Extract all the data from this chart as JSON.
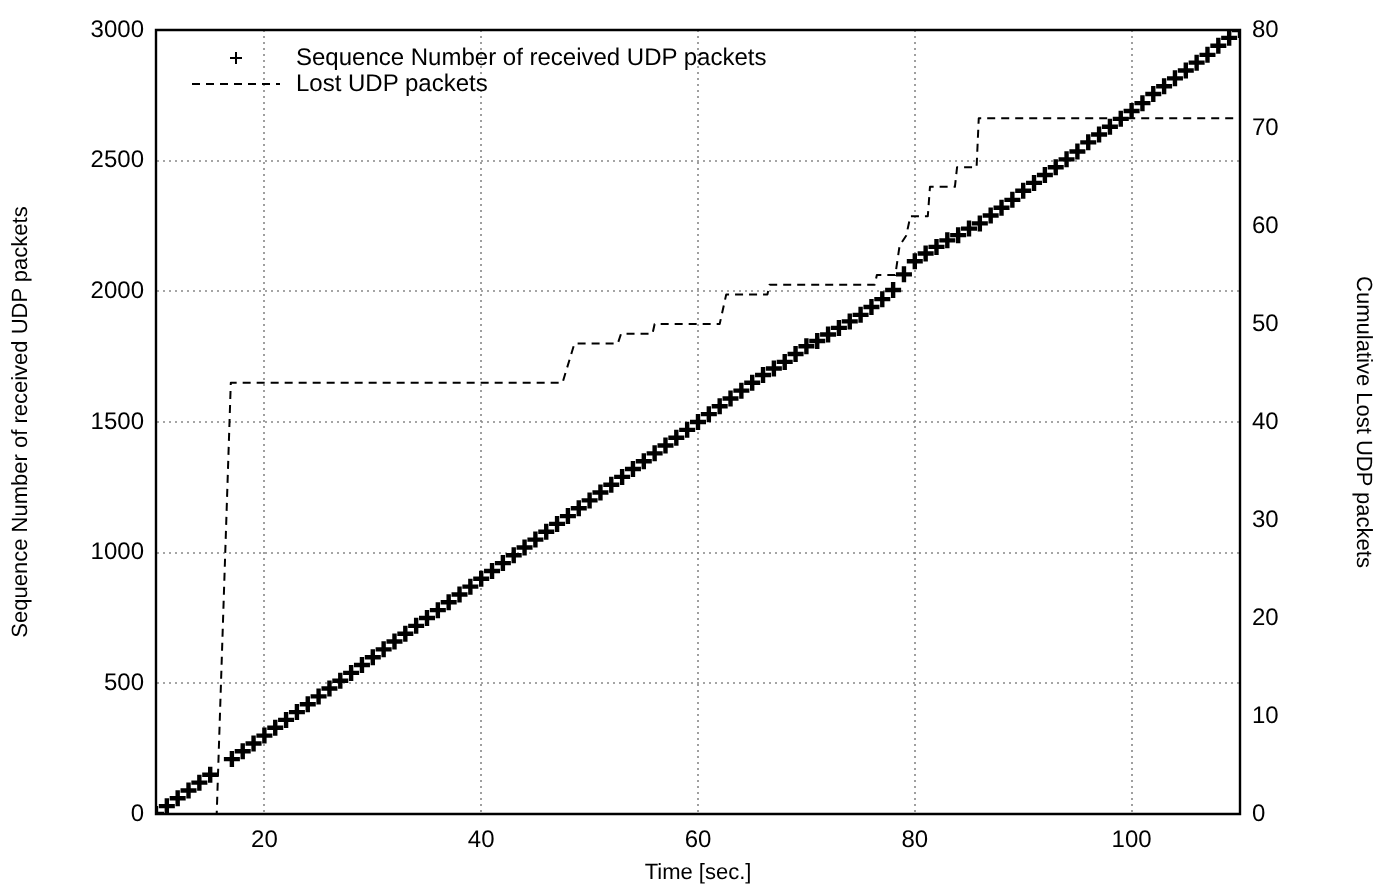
{
  "chart_data": {
    "type": "scatter",
    "xlabel": "Time [sec.]",
    "ylabel": "Sequence Number of received UDP packets",
    "y2label": "Cumulative Lost UDP packets",
    "xlim": [
      10,
      110
    ],
    "xticks": [
      20,
      40,
      60,
      80,
      100
    ],
    "ylim": [
      0,
      3000
    ],
    "yticks": [
      0,
      500,
      1000,
      1500,
      2000,
      2500,
      3000
    ],
    "y2lim": [
      0,
      80
    ],
    "y2ticks": [
      0,
      10,
      20,
      30,
      40,
      50,
      60,
      70,
      80
    ],
    "grid": true,
    "legend": "top left",
    "series": [
      {
        "name": "Sequence Number of received UDP packets",
        "type": "scatter",
        "marker": "cross",
        "color": "#000000",
        "x": [
          10,
          11,
          12,
          13,
          14,
          15,
          17,
          18,
          19,
          20,
          21,
          22,
          23,
          24,
          25,
          26,
          27,
          28,
          29,
          30,
          31,
          32,
          33,
          34,
          35,
          36,
          37,
          38,
          39,
          40,
          41,
          42,
          43,
          44,
          45,
          46,
          47,
          48,
          49,
          50,
          51,
          52,
          53,
          54,
          55,
          56,
          57,
          58,
          59,
          60,
          61,
          62,
          63,
          64,
          65,
          66,
          67,
          68,
          69,
          70,
          71,
          72,
          73,
          74,
          75,
          76,
          77,
          78,
          79,
          80,
          81,
          82,
          83,
          84,
          85,
          86,
          87,
          88,
          89,
          90,
          91,
          92,
          93,
          94,
          95,
          96,
          97,
          98,
          99,
          100,
          101,
          102,
          103,
          104,
          105,
          106,
          107,
          108,
          109,
          110
        ],
        "values": [
          0,
          30,
          60,
          90,
          120,
          150,
          210,
          240,
          270,
          300,
          330,
          360,
          390,
          420,
          450,
          480,
          510,
          540,
          570,
          600,
          630,
          660,
          690,
          720,
          750,
          780,
          810,
          840,
          870,
          900,
          930,
          960,
          990,
          1020,
          1050,
          1080,
          1110,
          1140,
          1170,
          1200,
          1230,
          1260,
          1290,
          1320,
          1350,
          1380,
          1410,
          1440,
          1470,
          1500,
          1530,
          1560,
          1590,
          1620,
          1650,
          1680,
          1705,
          1730,
          1760,
          1790,
          1810,
          1835,
          1860,
          1885,
          1910,
          1940,
          1970,
          2005,
          2065,
          2115,
          2145,
          2170,
          2195,
          2215,
          2240,
          2260,
          2290,
          2320,
          2350,
          2385,
          2415,
          2445,
          2475,
          2505,
          2535,
          2570,
          2600,
          2630,
          2660,
          2690,
          2720,
          2755,
          2785,
          2815,
          2845,
          2875,
          2905,
          2940,
          2970,
          3000
        ]
      },
      {
        "name": "Lost UDP packets",
        "type": "line",
        "axis": "y2",
        "line_style": "dashed",
        "marker": "none",
        "color": "#000000",
        "x": [
          10,
          15.6,
          16.9,
          47.5,
          48.6,
          52.6,
          52.9,
          55.8,
          56.0,
          62.0,
          62.6,
          66.4,
          66.6,
          76.3,
          76.5,
          78.2,
          78.6,
          79.2,
          79.6,
          81.2,
          81.4,
          83.7,
          83.9,
          85.7,
          85.9,
          110
        ],
        "values": [
          0,
          0,
          44,
          44,
          48,
          48,
          49,
          49,
          50,
          50,
          53,
          53,
          54,
          54,
          55,
          55,
          58,
          59,
          61,
          61,
          64,
          64,
          66,
          66,
          71,
          71
        ]
      }
    ]
  }
}
